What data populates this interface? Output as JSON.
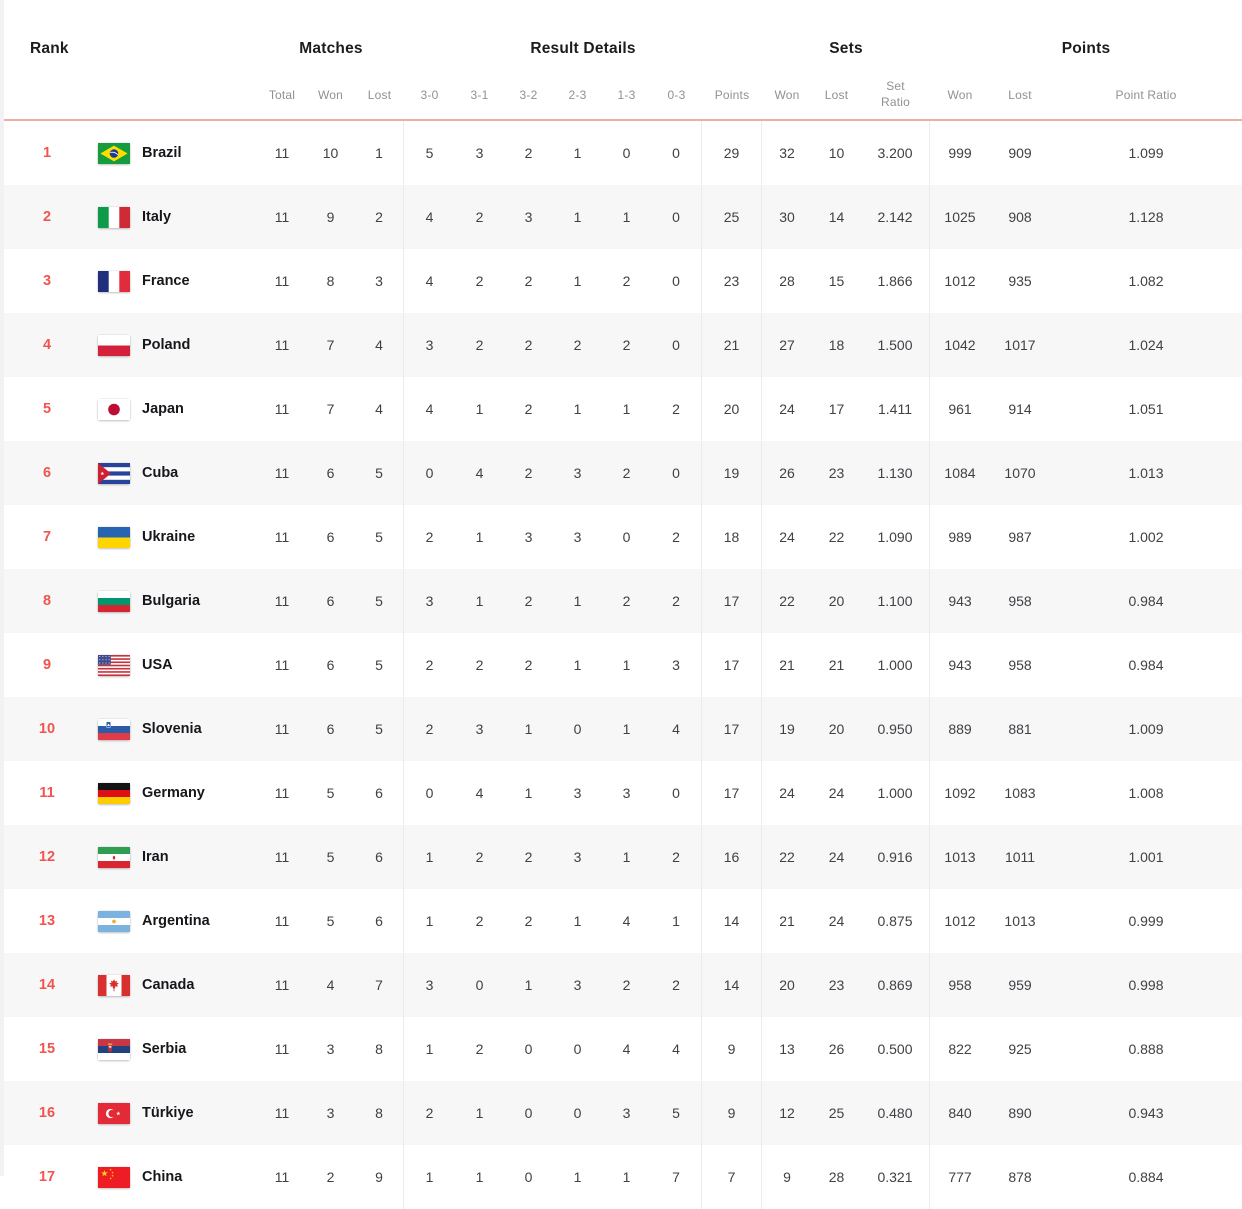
{
  "table": {
    "group_headers": {
      "rank": "Rank",
      "matches": "Matches",
      "result_details": "Result Details",
      "sets": "Sets",
      "points": "Points"
    },
    "sub_headers": {
      "total": "Total",
      "won": "Won",
      "lost": "Lost",
      "r30": "3-0",
      "r31": "3-1",
      "r32": "3-2",
      "r23": "2-3",
      "r13": "1-3",
      "r03": "0-3",
      "pts": "Points",
      "sets_won": "Won",
      "sets_lost": "Lost",
      "set_ratio": "Set Ratio",
      "pts_won": "Won",
      "pts_lost": "Lost",
      "point_ratio": "Point Ratio"
    },
    "rows": [
      {
        "rank": "1",
        "team": "Brazil",
        "flag": "br",
        "total": "11",
        "won": "10",
        "lost": "1",
        "r30": "5",
        "r31": "3",
        "r32": "2",
        "r23": "1",
        "r13": "0",
        "r03": "0",
        "pts": "29",
        "sets_won": "32",
        "sets_lost": "10",
        "set_ratio": "3.200",
        "pts_won": "999",
        "pts_lost": "909",
        "point_ratio": "1.099"
      },
      {
        "rank": "2",
        "team": "Italy",
        "flag": "it",
        "total": "11",
        "won": "9",
        "lost": "2",
        "r30": "4",
        "r31": "2",
        "r32": "3",
        "r23": "1",
        "r13": "1",
        "r03": "0",
        "pts": "25",
        "sets_won": "30",
        "sets_lost": "14",
        "set_ratio": "2.142",
        "pts_won": "1025",
        "pts_lost": "908",
        "point_ratio": "1.128"
      },
      {
        "rank": "3",
        "team": "France",
        "flag": "fr",
        "total": "11",
        "won": "8",
        "lost": "3",
        "r30": "4",
        "r31": "2",
        "r32": "2",
        "r23": "1",
        "r13": "2",
        "r03": "0",
        "pts": "23",
        "sets_won": "28",
        "sets_lost": "15",
        "set_ratio": "1.866",
        "pts_won": "1012",
        "pts_lost": "935",
        "point_ratio": "1.082"
      },
      {
        "rank": "4",
        "team": "Poland",
        "flag": "pl",
        "total": "11",
        "won": "7",
        "lost": "4",
        "r30": "3",
        "r31": "2",
        "r32": "2",
        "r23": "2",
        "r13": "2",
        "r03": "0",
        "pts": "21",
        "sets_won": "27",
        "sets_lost": "18",
        "set_ratio": "1.500",
        "pts_won": "1042",
        "pts_lost": "1017",
        "point_ratio": "1.024"
      },
      {
        "rank": "5",
        "team": "Japan",
        "flag": "jp",
        "total": "11",
        "won": "7",
        "lost": "4",
        "r30": "4",
        "r31": "1",
        "r32": "2",
        "r23": "1",
        "r13": "1",
        "r03": "2",
        "pts": "20",
        "sets_won": "24",
        "sets_lost": "17",
        "set_ratio": "1.411",
        "pts_won": "961",
        "pts_lost": "914",
        "point_ratio": "1.051"
      },
      {
        "rank": "6",
        "team": "Cuba",
        "flag": "cu",
        "total": "11",
        "won": "6",
        "lost": "5",
        "r30": "0",
        "r31": "4",
        "r32": "2",
        "r23": "3",
        "r13": "2",
        "r03": "0",
        "pts": "19",
        "sets_won": "26",
        "sets_lost": "23",
        "set_ratio": "1.130",
        "pts_won": "1084",
        "pts_lost": "1070",
        "point_ratio": "1.013"
      },
      {
        "rank": "7",
        "team": "Ukraine",
        "flag": "ua",
        "total": "11",
        "won": "6",
        "lost": "5",
        "r30": "2",
        "r31": "1",
        "r32": "3",
        "r23": "3",
        "r13": "0",
        "r03": "2",
        "pts": "18",
        "sets_won": "24",
        "sets_lost": "22",
        "set_ratio": "1.090",
        "pts_won": "989",
        "pts_lost": "987",
        "point_ratio": "1.002"
      },
      {
        "rank": "8",
        "team": "Bulgaria",
        "flag": "bg",
        "total": "11",
        "won": "6",
        "lost": "5",
        "r30": "3",
        "r31": "1",
        "r32": "2",
        "r23": "1",
        "r13": "2",
        "r03": "2",
        "pts": "17",
        "sets_won": "22",
        "sets_lost": "20",
        "set_ratio": "1.100",
        "pts_won": "943",
        "pts_lost": "958",
        "point_ratio": "0.984"
      },
      {
        "rank": "9",
        "team": "USA",
        "flag": "us",
        "total": "11",
        "won": "6",
        "lost": "5",
        "r30": "2",
        "r31": "2",
        "r32": "2",
        "r23": "1",
        "r13": "1",
        "r03": "3",
        "pts": "17",
        "sets_won": "21",
        "sets_lost": "21",
        "set_ratio": "1.000",
        "pts_won": "943",
        "pts_lost": "958",
        "point_ratio": "0.984"
      },
      {
        "rank": "10",
        "team": "Slovenia",
        "flag": "si",
        "total": "11",
        "won": "6",
        "lost": "5",
        "r30": "2",
        "r31": "3",
        "r32": "1",
        "r23": "0",
        "r13": "1",
        "r03": "4",
        "pts": "17",
        "sets_won": "19",
        "sets_lost": "20",
        "set_ratio": "0.950",
        "pts_won": "889",
        "pts_lost": "881",
        "point_ratio": "1.009"
      },
      {
        "rank": "11",
        "team": "Germany",
        "flag": "de",
        "total": "11",
        "won": "5",
        "lost": "6",
        "r30": "0",
        "r31": "4",
        "r32": "1",
        "r23": "3",
        "r13": "3",
        "r03": "0",
        "pts": "17",
        "sets_won": "24",
        "sets_lost": "24",
        "set_ratio": "1.000",
        "pts_won": "1092",
        "pts_lost": "1083",
        "point_ratio": "1.008"
      },
      {
        "rank": "12",
        "team": "Iran",
        "flag": "ir",
        "total": "11",
        "won": "5",
        "lost": "6",
        "r30": "1",
        "r31": "2",
        "r32": "2",
        "r23": "3",
        "r13": "1",
        "r03": "2",
        "pts": "16",
        "sets_won": "22",
        "sets_lost": "24",
        "set_ratio": "0.916",
        "pts_won": "1013",
        "pts_lost": "1011",
        "point_ratio": "1.001"
      },
      {
        "rank": "13",
        "team": "Argentina",
        "flag": "ar",
        "total": "11",
        "won": "5",
        "lost": "6",
        "r30": "1",
        "r31": "2",
        "r32": "2",
        "r23": "1",
        "r13": "4",
        "r03": "1",
        "pts": "14",
        "sets_won": "21",
        "sets_lost": "24",
        "set_ratio": "0.875",
        "pts_won": "1012",
        "pts_lost": "1013",
        "point_ratio": "0.999"
      },
      {
        "rank": "14",
        "team": "Canada",
        "flag": "ca",
        "total": "11",
        "won": "4",
        "lost": "7",
        "r30": "3",
        "r31": "0",
        "r32": "1",
        "r23": "3",
        "r13": "2",
        "r03": "2",
        "pts": "14",
        "sets_won": "20",
        "sets_lost": "23",
        "set_ratio": "0.869",
        "pts_won": "958",
        "pts_lost": "959",
        "point_ratio": "0.998"
      },
      {
        "rank": "15",
        "team": "Serbia",
        "flag": "rs",
        "total": "11",
        "won": "3",
        "lost": "8",
        "r30": "1",
        "r31": "2",
        "r32": "0",
        "r23": "0",
        "r13": "4",
        "r03": "4",
        "pts": "9",
        "sets_won": "13",
        "sets_lost": "26",
        "set_ratio": "0.500",
        "pts_won": "822",
        "pts_lost": "925",
        "point_ratio": "0.888"
      },
      {
        "rank": "16",
        "team": "Türkiye",
        "flag": "tr",
        "total": "11",
        "won": "3",
        "lost": "8",
        "r30": "2",
        "r31": "1",
        "r32": "0",
        "r23": "0",
        "r13": "3",
        "r03": "5",
        "pts": "9",
        "sets_won": "12",
        "sets_lost": "25",
        "set_ratio": "0.480",
        "pts_won": "840",
        "pts_lost": "890",
        "point_ratio": "0.943"
      },
      {
        "rank": "17",
        "team": "China",
        "flag": "cn",
        "total": "11",
        "won": "2",
        "lost": "9",
        "r30": "1",
        "r31": "1",
        "r32": "0",
        "r23": "1",
        "r13": "1",
        "r03": "7",
        "pts": "7",
        "sets_won": "9",
        "sets_lost": "28",
        "set_ratio": "0.321",
        "pts_won": "777",
        "pts_lost": "878",
        "point_ratio": "0.884"
      }
    ]
  },
  "colors": {
    "accent_rank": "#f0544f",
    "header_underline": "#edafa3",
    "row_alt_background": "#f7f7f8",
    "divider": "#ececee",
    "header_text": "#1c1c1f",
    "subheader_text": "#909095",
    "cell_text": "#404045"
  }
}
